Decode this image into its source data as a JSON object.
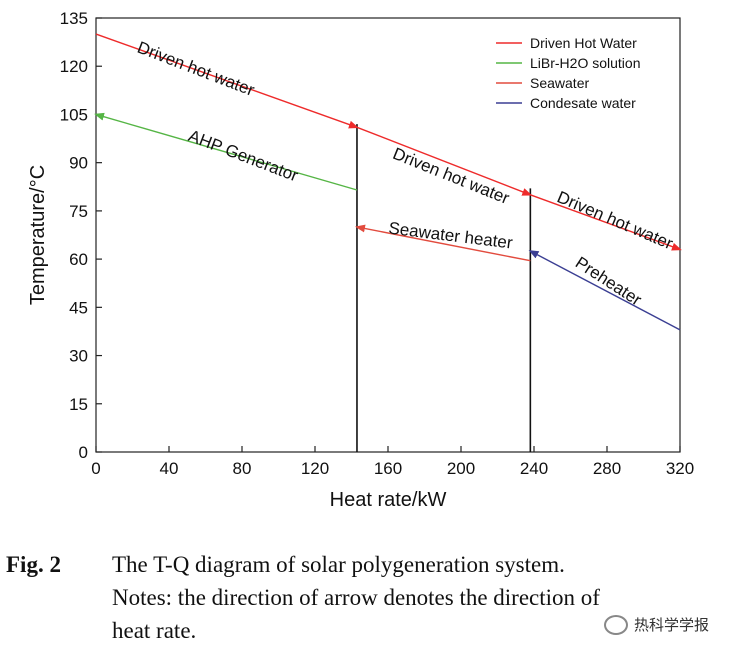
{
  "chart_data": {
    "type": "line",
    "xlabel": "Heat rate/kW",
    "ylabel": "Temperature/°C",
    "xlim": [
      0,
      320
    ],
    "ylim": [
      0,
      135
    ],
    "xticks": [
      0,
      40,
      80,
      120,
      160,
      200,
      240,
      280,
      320
    ],
    "yticks": [
      0,
      15,
      30,
      45,
      60,
      75,
      90,
      105,
      120,
      135
    ],
    "grid": false,
    "legend_position": "top-right",
    "legend": [
      {
        "label": "Driven Hot Water",
        "color": "#ee2b2b"
      },
      {
        "label": "LiBr-H2O solution",
        "color": "#55b545"
      },
      {
        "label": "Seawater",
        "color": "#e24b3e"
      },
      {
        "label": "Condesate water",
        "color": "#3b3f93"
      }
    ],
    "series": [
      {
        "name": "Driven Hot Water",
        "color": "#ee2b2b",
        "segments": [
          {
            "from": [
              0,
              130
            ],
            "to": [
              143,
              101
            ]
          },
          {
            "from": [
              143,
              101
            ],
            "to": [
              238,
              80
            ]
          },
          {
            "from": [
              238,
              80
            ],
            "to": [
              320,
              63
            ]
          }
        ]
      },
      {
        "name": "LiBr-H2O solution",
        "color": "#55b545",
        "segments": [
          {
            "from": [
              143,
              81.5
            ],
            "to": [
              0,
              105
            ]
          }
        ]
      },
      {
        "name": "Seawater",
        "color": "#e24b3e",
        "segments": [
          {
            "from": [
              238,
              59.5
            ],
            "to": [
              143,
              70
            ]
          }
        ]
      },
      {
        "name": "Condesate water",
        "color": "#3b3f93",
        "segments": [
          {
            "from": [
              320,
              38
            ],
            "to": [
              238,
              62.5
            ]
          }
        ]
      }
    ],
    "vertical_lines": [
      {
        "x": 143,
        "y_top": 102
      },
      {
        "x": 238,
        "y_top": 82
      }
    ],
    "annotations": [
      {
        "text": "Driven hot water",
        "x": 22,
        "y": 124.5
      },
      {
        "text": "AHP Generator",
        "x": 50,
        "y": 97
      },
      {
        "text": "Driven hot water",
        "x": 162,
        "y": 91.5
      },
      {
        "text": "Driven hot water",
        "x": 252,
        "y": 78
      },
      {
        "text": "Seawater heater",
        "x": 160,
        "y": 68
      },
      {
        "text": "Preheater",
        "x": 262,
        "y": 58
      }
    ]
  },
  "caption": {
    "label": "Fig. 2",
    "line1": "The T-Q diagram of solar polygeneration system.",
    "line2": "Notes: the direction of arrow denotes the direction of",
    "line3": "heat rate."
  },
  "watermark": {
    "text": "热科学学报",
    "icon": "wechat-icon"
  }
}
